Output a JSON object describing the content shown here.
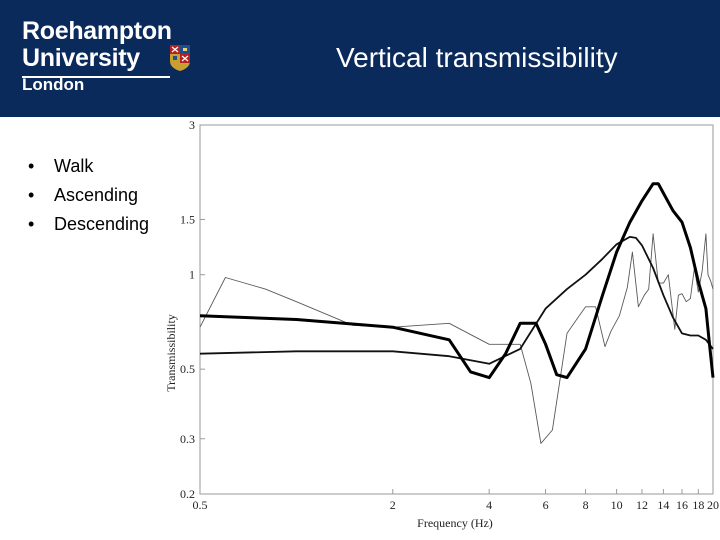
{
  "header": {
    "logo_line1": "Roehampton",
    "logo_line2": "University",
    "logo_line3": "London",
    "title": "Vertical transmissibility"
  },
  "bullets": [
    "Walk",
    "Ascending",
    "Descending"
  ],
  "colors": {
    "header_bg": "#0b2a5c",
    "text": "#000000"
  },
  "chart_data": {
    "type": "line",
    "xlabel": "Frequency (Hz)",
    "ylabel": "Transmissibility",
    "xscale": "log",
    "yscale": "log",
    "xlim": [
      0.5,
      20
    ],
    "ylim": [
      0.2,
      3
    ],
    "x_ticks": [
      0.5,
      2,
      4,
      6,
      8,
      10,
      12,
      14,
      16,
      18,
      20
    ],
    "y_ticks": [
      0.2,
      0.3,
      0.5,
      1,
      1.5,
      3
    ],
    "grid": false,
    "series": [
      {
        "style": "thin",
        "points": [
          [
            0.5,
            0.68
          ],
          [
            0.6,
            0.98
          ],
          [
            0.8,
            0.9
          ],
          [
            1.0,
            0.82
          ],
          [
            1.5,
            0.69
          ],
          [
            2,
            0.68
          ],
          [
            3,
            0.7
          ],
          [
            4,
            0.6
          ],
          [
            5,
            0.6
          ],
          [
            5.4,
            0.45
          ],
          [
            5.8,
            0.29
          ],
          [
            6.3,
            0.32
          ],
          [
            7,
            0.65
          ],
          [
            7.5,
            0.72
          ],
          [
            8,
            0.79
          ],
          [
            8.6,
            0.79
          ],
          [
            9.2,
            0.59
          ],
          [
            9.6,
            0.66
          ],
          [
            10.2,
            0.74
          ],
          [
            10.8,
            0.91
          ],
          [
            11.2,
            1.18
          ],
          [
            11.7,
            0.79
          ],
          [
            12.2,
            0.86
          ],
          [
            12.6,
            0.9
          ],
          [
            13.0,
            1.35
          ],
          [
            13.5,
            0.94
          ],
          [
            14,
            0.94
          ],
          [
            14.5,
            1.0
          ],
          [
            15.2,
            0.67
          ],
          [
            15.6,
            0.86
          ],
          [
            16,
            0.87
          ],
          [
            16.5,
            0.82
          ],
          [
            17,
            0.84
          ],
          [
            17.5,
            1.05
          ],
          [
            18,
            0.88
          ],
          [
            18.5,
            1.03
          ],
          [
            19,
            1.35
          ],
          [
            19.3,
            1.0
          ],
          [
            19.7,
            0.95
          ],
          [
            20,
            0.9
          ]
        ]
      },
      {
        "style": "medium",
        "points": [
          [
            0.5,
            0.56
          ],
          [
            1,
            0.57
          ],
          [
            2,
            0.57
          ],
          [
            3,
            0.55
          ],
          [
            4,
            0.52
          ],
          [
            5,
            0.58
          ],
          [
            6,
            0.78
          ],
          [
            7,
            0.9
          ],
          [
            8,
            1.0
          ],
          [
            9,
            1.12
          ],
          [
            10,
            1.25
          ],
          [
            11,
            1.32
          ],
          [
            11.5,
            1.31
          ],
          [
            12,
            1.24
          ],
          [
            13,
            1.05
          ],
          [
            14,
            0.86
          ],
          [
            15,
            0.73
          ],
          [
            16,
            0.65
          ],
          [
            17,
            0.64
          ],
          [
            18,
            0.64
          ],
          [
            19,
            0.62
          ],
          [
            20,
            0.58
          ]
        ]
      },
      {
        "style": "thick",
        "points": [
          [
            0.5,
            0.74
          ],
          [
            1,
            0.72
          ],
          [
            2,
            0.68
          ],
          [
            3,
            0.62
          ],
          [
            3.5,
            0.49
          ],
          [
            4,
            0.47
          ],
          [
            4.5,
            0.56
          ],
          [
            5,
            0.7
          ],
          [
            5.6,
            0.7
          ],
          [
            6,
            0.6
          ],
          [
            6.5,
            0.48
          ],
          [
            7,
            0.47
          ],
          [
            8,
            0.58
          ],
          [
            9,
            0.85
          ],
          [
            10,
            1.18
          ],
          [
            11,
            1.47
          ],
          [
            12,
            1.72
          ],
          [
            13,
            1.95
          ],
          [
            13.5,
            1.95
          ],
          [
            14,
            1.82
          ],
          [
            15,
            1.6
          ],
          [
            16,
            1.47
          ],
          [
            17,
            1.22
          ],
          [
            18,
            0.95
          ],
          [
            19,
            0.78
          ],
          [
            19.5,
            0.6
          ],
          [
            20,
            0.47
          ]
        ]
      }
    ]
  }
}
